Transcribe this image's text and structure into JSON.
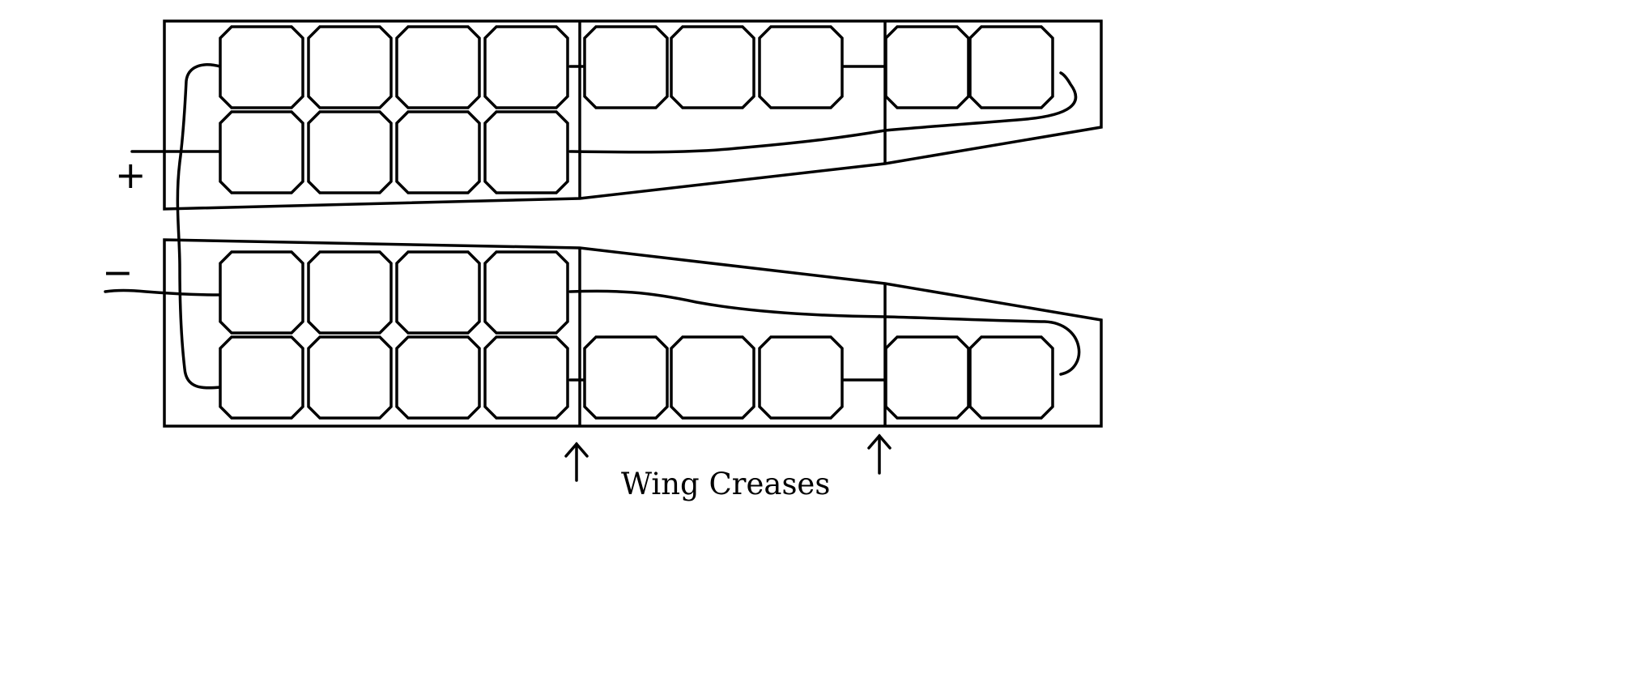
{
  "labels": {
    "plus": "+",
    "minus": "−",
    "wing_creases": "Wing Creases"
  },
  "colors": {
    "ink": "#000000",
    "background": "#ffffff"
  }
}
